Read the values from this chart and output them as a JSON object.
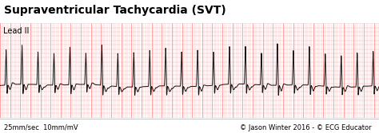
{
  "title": "Supraventricular Tachycardia (SVT)",
  "lead_label": "Lead II",
  "bottom_left": "25mm/sec  10mm/mV",
  "bottom_right": "© Jason Winter 2016 - © ECG Educator",
  "background_color": "#FFCCCC",
  "grid_minor_color": "#FFAAAA",
  "grid_major_color": "#FF8888",
  "ecg_color": "#111111",
  "title_color": "#000000",
  "fig_bg_color": "#FFFFFF",
  "title_fontsize": 10,
  "label_fontsize": 6.0,
  "lead_fontsize": 7,
  "ecg_linewidth": 0.7,
  "fig_width": 4.74,
  "fig_height": 1.67,
  "dpi": 100,
  "heart_rate": 190,
  "ecg_amplitude": 0.85,
  "total_time": 7.5
}
